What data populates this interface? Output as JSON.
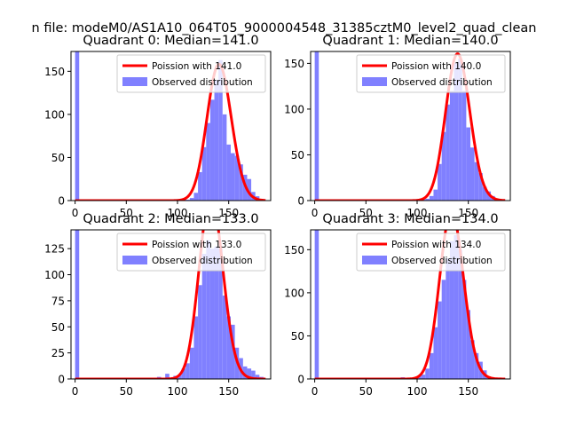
{
  "figure": {
    "suptitle": "n file: modeM0/AS1A10_064T05_9000004548_31385cztM0_level2_quad_clean"
  },
  "chart_data": [
    {
      "type": "histogram+line",
      "title": "Quadrant 0: Median=141.0",
      "median": 141,
      "xlim": [
        -4,
        191
      ],
      "ylim": [
        0,
        173
      ],
      "xticks": [
        0,
        50,
        100,
        150
      ],
      "yticks": [
        0,
        50,
        100,
        150
      ],
      "bin_width": 4,
      "bins_x": [
        0,
        100,
        104,
        108,
        112,
        116,
        120,
        124,
        128,
        132,
        136,
        140,
        144,
        148,
        152,
        156,
        160,
        164,
        168,
        172,
        176,
        180
      ],
      "bins_y": [
        173,
        0,
        1,
        1,
        3,
        9,
        33,
        62,
        90,
        117,
        140,
        163,
        100,
        65,
        55,
        52,
        42,
        30,
        25,
        10,
        5,
        2
      ],
      "legend": [
        "Poission with 141.0",
        "Observed distribution"
      ],
      "line_color": "#ff0000",
      "bar_color": "#8080ff"
    },
    {
      "type": "histogram+line",
      "title": "Quadrant 1: Median=140.0",
      "median": 140,
      "xlim": [
        -4,
        191
      ],
      "ylim": [
        0,
        163
      ],
      "xticks": [
        0,
        50,
        100,
        150
      ],
      "yticks": [
        0,
        50,
        100,
        150
      ],
      "bin_width": 4,
      "bins_x": [
        0,
        100,
        104,
        108,
        112,
        116,
        120,
        124,
        128,
        132,
        136,
        140,
        144,
        148,
        152,
        156,
        160,
        164,
        168,
        172,
        176
      ],
      "bins_y": [
        163,
        0,
        1,
        2,
        5,
        12,
        40,
        75,
        105,
        120,
        150,
        155,
        120,
        80,
        58,
        42,
        30,
        15,
        10,
        5,
        2
      ],
      "legend": [
        "Poission with 140.0",
        "Observed distribution"
      ],
      "line_color": "#ff0000",
      "bar_color": "#8080ff"
    },
    {
      "type": "histogram+line",
      "title": "Quadrant 2: Median=133.0",
      "median": 133,
      "xlim": [
        -4,
        191
      ],
      "ylim": [
        0,
        143
      ],
      "xticks": [
        0,
        50,
        100,
        150
      ],
      "yticks": [
        0,
        25,
        50,
        75,
        100,
        125
      ],
      "bin_width": 4,
      "bins_x": [
        0,
        80,
        88,
        96,
        100,
        104,
        108,
        112,
        116,
        120,
        124,
        128,
        132,
        136,
        140,
        144,
        148,
        152,
        156,
        160,
        164,
        168,
        172,
        176,
        180
      ],
      "bins_y": [
        143,
        2,
        5,
        3,
        4,
        10,
        15,
        30,
        60,
        90,
        120,
        133,
        125,
        127,
        125,
        80,
        60,
        52,
        30,
        20,
        12,
        10,
        8,
        4,
        2
      ],
      "legend": [
        "Poission with 133.0",
        "Observed distribution"
      ],
      "line_color": "#ff0000",
      "bar_color": "#8080ff"
    },
    {
      "type": "histogram+line",
      "title": "Quadrant 3: Median=134.0",
      "median": 134,
      "xlim": [
        -4,
        191
      ],
      "ylim": [
        0,
        173
      ],
      "xticks": [
        0,
        50,
        100,
        150
      ],
      "yticks": [
        0,
        50,
        100,
        150
      ],
      "bin_width": 4,
      "bins_x": [
        0,
        72,
        84,
        92,
        100,
        104,
        108,
        112,
        116,
        120,
        124,
        128,
        132,
        136,
        140,
        144,
        148,
        152,
        156,
        160,
        164,
        168
      ],
      "bins_y": [
        173,
        1,
        2,
        1,
        3,
        5,
        12,
        30,
        60,
        90,
        115,
        140,
        160,
        167,
        150,
        115,
        80,
        45,
        30,
        20,
        10,
        3
      ],
      "legend": [
        "Poission with 134.0",
        "Observed distribution"
      ],
      "line_color": "#ff0000",
      "bar_color": "#8080ff"
    }
  ]
}
